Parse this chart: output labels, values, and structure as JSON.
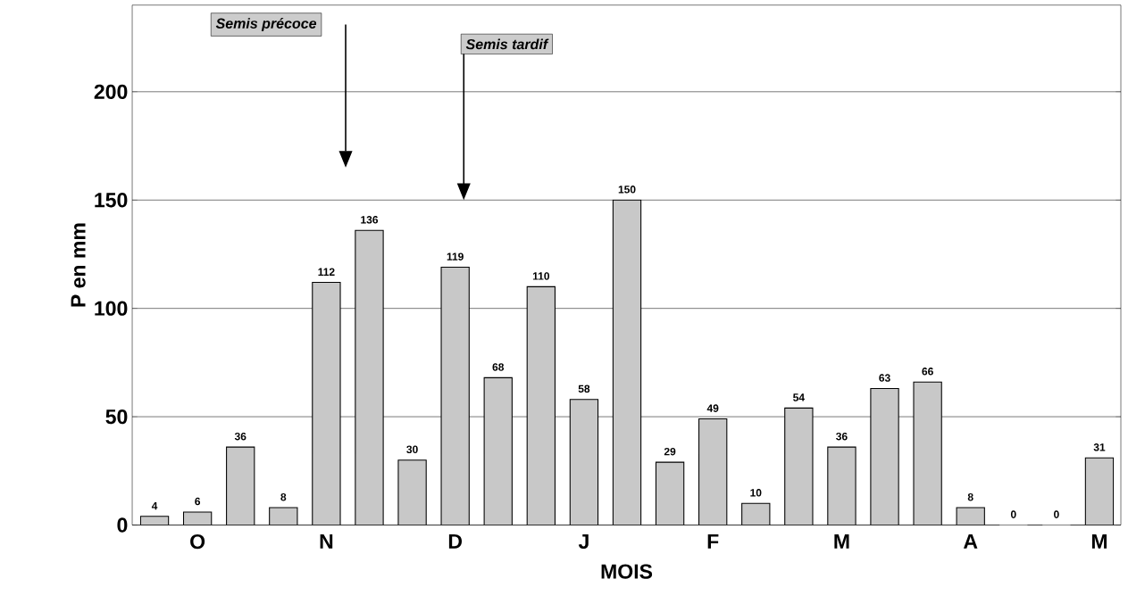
{
  "chart_data": {
    "type": "bar",
    "xlabel": "MOIS",
    "ylabel": "P en mm",
    "categories": [
      null,
      "O",
      null,
      null,
      "N",
      null,
      null,
      "D",
      null,
      null,
      "J",
      null,
      null,
      "F",
      null,
      null,
      "M",
      null,
      null,
      "A",
      null,
      null,
      "M"
    ],
    "values": [
      4,
      6,
      36,
      8,
      112,
      136,
      30,
      119,
      68,
      110,
      58,
      150,
      29,
      49,
      10,
      54,
      36,
      63,
      66,
      8,
      0,
      0,
      31
    ],
    "color": "#c8c8c8",
    "ylim": [
      0,
      240
    ],
    "yticks": [
      0,
      50,
      100,
      150,
      200
    ],
    "grid": "y",
    "data_labels": true,
    "annotations": [
      "Semis précoce",
      "Semis tardif"
    ]
  }
}
